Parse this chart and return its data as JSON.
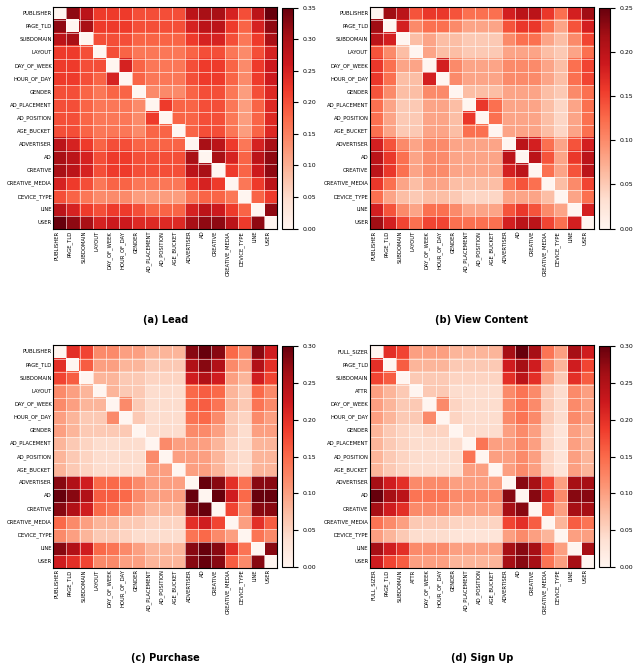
{
  "labels_lead": [
    "PUBLISHER",
    "PAGE_TLD",
    "SUBDOMAIN",
    "LAYOUT",
    "DAY_OF_WEEK",
    "HOUR_OF_DAY",
    "GENDER",
    "AD_PLACEMENT",
    "AD_POSITION",
    "AGE_BUCKET",
    "ADVERTISER",
    "AD",
    "CREATIVE",
    "CREATIVE_MEDIA",
    "DEVICE_TYPE",
    "LINE",
    "USER"
  ],
  "labels_view": [
    "PUBLISHER",
    "PAGE_TLD",
    "SUBDOMAIN",
    "LAYOUT",
    "DAY_OF_WEEK",
    "HOUR_OF_DAY",
    "GENDER",
    "AD_PLACEMENT",
    "AD_POSITION",
    "AGE_BUCKET",
    "ADVERTISER",
    "AD",
    "CREATIVE",
    "CREATIVE_MEDIA",
    "DEVICE_TYPE",
    "LINE",
    "USER"
  ],
  "labels_purchase": [
    "PUBLISHER",
    "PAGE_TLD",
    "SUBDOMAIN",
    "LAYOUT",
    "DAY_OF_WEEK",
    "HOUR_OF_DAY",
    "GENDER",
    "AD_PLACEMENT",
    "AD_POSITION",
    "AGE_BUCKET",
    "ADVERTISER",
    "AD",
    "CREATIVE",
    "CREATIVE_MEDIA",
    "DEVICE_TYPE",
    "LINE",
    "USER"
  ],
  "labels_signup": [
    "FULL_SIZER",
    "PAGE_TLD",
    "SUBDOMAIN",
    "ATTR",
    "DAY_OF_WEEK",
    "HOUR_OF_DAY",
    "GENDER",
    "AD_PLACEMENT",
    "AD_POSITION",
    "AGE_BUCKET",
    "ADVERTISER",
    "AD",
    "CREATIVE",
    "CREATIVE_MEDIA",
    "DEVICE_TYPE",
    "LINE",
    "USER"
  ],
  "title_a": "(a) Lead",
  "title_b": "(b) View Content",
  "title_c": "(c) Purchase",
  "title_d": "(d) Sign Up",
  "vmax_lead": 0.35,
  "vmax_view": 0.25,
  "vmax_purchase": 0.3,
  "vmax_signup": 0.3,
  "cbar_ticks_lead": [
    0.0,
    0.05,
    0.1,
    0.15,
    0.2,
    0.25,
    0.3,
    0.35
  ],
  "cbar_ticks_view": [
    0.0,
    0.05,
    0.1,
    0.15,
    0.2,
    0.25
  ],
  "cbar_ticks_purchase": [
    0.0,
    0.05,
    0.1,
    0.15,
    0.2,
    0.25,
    0.3
  ],
  "cbar_ticks_signup": [
    0.0,
    0.05,
    0.1,
    0.15,
    0.2,
    0.25,
    0.3
  ],
  "lead_mat": [
    [
      0.0,
      0.32,
      0.28,
      0.22,
      0.22,
      0.22,
      0.2,
      0.2,
      0.2,
      0.2,
      0.28,
      0.3,
      0.3,
      0.25,
      0.2,
      0.28,
      0.35
    ],
    [
      0.32,
      0.0,
      0.3,
      0.22,
      0.22,
      0.22,
      0.2,
      0.2,
      0.2,
      0.2,
      0.25,
      0.28,
      0.28,
      0.22,
      0.18,
      0.25,
      0.32
    ],
    [
      0.28,
      0.3,
      0.0,
      0.2,
      0.2,
      0.2,
      0.18,
      0.18,
      0.18,
      0.18,
      0.22,
      0.25,
      0.25,
      0.2,
      0.16,
      0.22,
      0.3
    ],
    [
      0.22,
      0.22,
      0.2,
      0.0,
      0.2,
      0.18,
      0.16,
      0.16,
      0.16,
      0.16,
      0.18,
      0.2,
      0.2,
      0.16,
      0.14,
      0.2,
      0.25
    ],
    [
      0.22,
      0.22,
      0.2,
      0.2,
      0.0,
      0.25,
      0.18,
      0.16,
      0.16,
      0.16,
      0.2,
      0.22,
      0.22,
      0.18,
      0.14,
      0.22,
      0.26
    ],
    [
      0.22,
      0.22,
      0.2,
      0.18,
      0.25,
      0.0,
      0.18,
      0.16,
      0.16,
      0.16,
      0.2,
      0.22,
      0.22,
      0.18,
      0.14,
      0.22,
      0.26
    ],
    [
      0.2,
      0.2,
      0.18,
      0.16,
      0.18,
      0.18,
      0.0,
      0.14,
      0.14,
      0.14,
      0.18,
      0.2,
      0.2,
      0.16,
      0.12,
      0.2,
      0.24
    ],
    [
      0.2,
      0.2,
      0.18,
      0.16,
      0.16,
      0.16,
      0.14,
      0.0,
      0.22,
      0.18,
      0.18,
      0.2,
      0.2,
      0.16,
      0.12,
      0.18,
      0.24
    ],
    [
      0.2,
      0.2,
      0.18,
      0.16,
      0.16,
      0.16,
      0.14,
      0.22,
      0.0,
      0.18,
      0.18,
      0.2,
      0.2,
      0.16,
      0.12,
      0.18,
      0.24
    ],
    [
      0.2,
      0.2,
      0.18,
      0.16,
      0.16,
      0.16,
      0.14,
      0.18,
      0.18,
      0.0,
      0.18,
      0.2,
      0.2,
      0.16,
      0.12,
      0.18,
      0.24
    ],
    [
      0.28,
      0.25,
      0.22,
      0.18,
      0.2,
      0.2,
      0.18,
      0.18,
      0.18,
      0.18,
      0.0,
      0.3,
      0.28,
      0.22,
      0.16,
      0.25,
      0.3
    ],
    [
      0.3,
      0.28,
      0.25,
      0.2,
      0.22,
      0.22,
      0.2,
      0.2,
      0.2,
      0.2,
      0.3,
      0.0,
      0.3,
      0.25,
      0.18,
      0.28,
      0.32
    ],
    [
      0.3,
      0.28,
      0.25,
      0.2,
      0.22,
      0.22,
      0.2,
      0.2,
      0.2,
      0.2,
      0.28,
      0.3,
      0.0,
      0.22,
      0.18,
      0.26,
      0.32
    ],
    [
      0.25,
      0.22,
      0.2,
      0.16,
      0.18,
      0.18,
      0.16,
      0.16,
      0.16,
      0.16,
      0.22,
      0.25,
      0.22,
      0.0,
      0.16,
      0.22,
      0.28
    ],
    [
      0.2,
      0.18,
      0.16,
      0.14,
      0.14,
      0.14,
      0.12,
      0.12,
      0.12,
      0.12,
      0.16,
      0.18,
      0.18,
      0.16,
      0.0,
      0.18,
      0.22
    ],
    [
      0.28,
      0.25,
      0.22,
      0.2,
      0.22,
      0.22,
      0.2,
      0.18,
      0.18,
      0.18,
      0.25,
      0.28,
      0.26,
      0.22,
      0.18,
      0.0,
      0.32
    ],
    [
      0.35,
      0.32,
      0.3,
      0.25,
      0.26,
      0.26,
      0.24,
      0.24,
      0.24,
      0.24,
      0.3,
      0.32,
      0.32,
      0.28,
      0.22,
      0.32,
      0.0
    ]
  ],
  "view_mat": [
    [
      0.0,
      0.22,
      0.2,
      0.14,
      0.16,
      0.16,
      0.14,
      0.12,
      0.12,
      0.12,
      0.18,
      0.2,
      0.2,
      0.16,
      0.12,
      0.18,
      0.22
    ],
    [
      0.22,
      0.0,
      0.18,
      0.1,
      0.12,
      0.12,
      0.1,
      0.08,
      0.08,
      0.08,
      0.14,
      0.16,
      0.16,
      0.12,
      0.08,
      0.14,
      0.18
    ],
    [
      0.2,
      0.18,
      0.0,
      0.06,
      0.08,
      0.06,
      0.06,
      0.05,
      0.05,
      0.05,
      0.1,
      0.12,
      0.12,
      0.08,
      0.06,
      0.1,
      0.15
    ],
    [
      0.14,
      0.1,
      0.06,
      0.0,
      0.08,
      0.06,
      0.06,
      0.05,
      0.05,
      0.05,
      0.08,
      0.08,
      0.08,
      0.06,
      0.05,
      0.08,
      0.12
    ],
    [
      0.16,
      0.12,
      0.08,
      0.08,
      0.0,
      0.18,
      0.1,
      0.08,
      0.08,
      0.08,
      0.1,
      0.1,
      0.1,
      0.08,
      0.06,
      0.12,
      0.15
    ],
    [
      0.16,
      0.12,
      0.06,
      0.06,
      0.18,
      0.0,
      0.1,
      0.08,
      0.08,
      0.08,
      0.1,
      0.1,
      0.1,
      0.08,
      0.06,
      0.12,
      0.15
    ],
    [
      0.14,
      0.1,
      0.06,
      0.06,
      0.1,
      0.1,
      0.0,
      0.06,
      0.06,
      0.06,
      0.08,
      0.08,
      0.08,
      0.06,
      0.05,
      0.1,
      0.12
    ],
    [
      0.12,
      0.08,
      0.05,
      0.05,
      0.08,
      0.08,
      0.06,
      0.0,
      0.16,
      0.12,
      0.08,
      0.08,
      0.08,
      0.06,
      0.04,
      0.08,
      0.12
    ],
    [
      0.12,
      0.08,
      0.05,
      0.05,
      0.08,
      0.08,
      0.06,
      0.16,
      0.0,
      0.12,
      0.08,
      0.08,
      0.08,
      0.06,
      0.04,
      0.08,
      0.12
    ],
    [
      0.12,
      0.08,
      0.05,
      0.05,
      0.08,
      0.08,
      0.06,
      0.12,
      0.12,
      0.0,
      0.08,
      0.08,
      0.08,
      0.06,
      0.04,
      0.08,
      0.12
    ],
    [
      0.18,
      0.14,
      0.1,
      0.08,
      0.1,
      0.1,
      0.08,
      0.08,
      0.08,
      0.08,
      0.0,
      0.2,
      0.18,
      0.12,
      0.08,
      0.14,
      0.18
    ],
    [
      0.2,
      0.16,
      0.12,
      0.08,
      0.1,
      0.1,
      0.08,
      0.08,
      0.08,
      0.08,
      0.2,
      0.0,
      0.2,
      0.14,
      0.08,
      0.16,
      0.2
    ],
    [
      0.2,
      0.16,
      0.12,
      0.08,
      0.1,
      0.1,
      0.08,
      0.08,
      0.08,
      0.08,
      0.18,
      0.2,
      0.0,
      0.12,
      0.08,
      0.14,
      0.2
    ],
    [
      0.16,
      0.12,
      0.08,
      0.06,
      0.08,
      0.08,
      0.06,
      0.06,
      0.06,
      0.06,
      0.12,
      0.14,
      0.12,
      0.0,
      0.06,
      0.1,
      0.15
    ],
    [
      0.12,
      0.08,
      0.06,
      0.05,
      0.06,
      0.06,
      0.05,
      0.04,
      0.04,
      0.04,
      0.08,
      0.08,
      0.08,
      0.06,
      0.0,
      0.08,
      0.12
    ],
    [
      0.18,
      0.14,
      0.1,
      0.08,
      0.12,
      0.12,
      0.1,
      0.08,
      0.08,
      0.08,
      0.14,
      0.16,
      0.14,
      0.1,
      0.08,
      0.0,
      0.18
    ],
    [
      0.22,
      0.18,
      0.15,
      0.12,
      0.15,
      0.15,
      0.12,
      0.12,
      0.12,
      0.12,
      0.18,
      0.2,
      0.2,
      0.15,
      0.12,
      0.18,
      0.0
    ]
  ],
  "purchase_mat": [
    [
      0.0,
      0.2,
      0.18,
      0.12,
      0.12,
      0.1,
      0.1,
      0.08,
      0.08,
      0.08,
      0.28,
      0.3,
      0.28,
      0.15,
      0.12,
      0.28,
      0.22
    ],
    [
      0.2,
      0.0,
      0.16,
      0.1,
      0.1,
      0.08,
      0.08,
      0.06,
      0.06,
      0.06,
      0.25,
      0.28,
      0.25,
      0.12,
      0.1,
      0.25,
      0.2
    ],
    [
      0.18,
      0.16,
      0.0,
      0.08,
      0.08,
      0.06,
      0.06,
      0.05,
      0.05,
      0.05,
      0.22,
      0.25,
      0.22,
      0.1,
      0.08,
      0.22,
      0.18
    ],
    [
      0.12,
      0.1,
      0.08,
      0.0,
      0.08,
      0.06,
      0.06,
      0.04,
      0.04,
      0.04,
      0.15,
      0.16,
      0.15,
      0.08,
      0.06,
      0.15,
      0.12
    ],
    [
      0.12,
      0.1,
      0.08,
      0.08,
      0.0,
      0.12,
      0.06,
      0.04,
      0.04,
      0.04,
      0.15,
      0.16,
      0.14,
      0.08,
      0.06,
      0.14,
      0.12
    ],
    [
      0.1,
      0.08,
      0.06,
      0.06,
      0.12,
      0.0,
      0.06,
      0.04,
      0.04,
      0.04,
      0.14,
      0.15,
      0.12,
      0.06,
      0.05,
      0.12,
      0.1
    ],
    [
      0.1,
      0.08,
      0.06,
      0.06,
      0.06,
      0.06,
      0.0,
      0.04,
      0.04,
      0.04,
      0.12,
      0.12,
      0.1,
      0.06,
      0.04,
      0.1,
      0.1
    ],
    [
      0.08,
      0.06,
      0.05,
      0.04,
      0.04,
      0.04,
      0.04,
      0.0,
      0.12,
      0.1,
      0.1,
      0.1,
      0.08,
      0.05,
      0.04,
      0.08,
      0.08
    ],
    [
      0.08,
      0.06,
      0.05,
      0.04,
      0.04,
      0.04,
      0.04,
      0.12,
      0.0,
      0.1,
      0.1,
      0.1,
      0.08,
      0.05,
      0.04,
      0.08,
      0.08
    ],
    [
      0.08,
      0.06,
      0.05,
      0.04,
      0.04,
      0.04,
      0.04,
      0.1,
      0.1,
      0.0,
      0.1,
      0.1,
      0.08,
      0.05,
      0.04,
      0.08,
      0.08
    ],
    [
      0.28,
      0.25,
      0.22,
      0.15,
      0.15,
      0.14,
      0.12,
      0.1,
      0.1,
      0.1,
      0.0,
      0.3,
      0.28,
      0.2,
      0.14,
      0.28,
      0.28
    ],
    [
      0.3,
      0.28,
      0.25,
      0.16,
      0.16,
      0.15,
      0.12,
      0.1,
      0.1,
      0.1,
      0.3,
      0.0,
      0.3,
      0.22,
      0.15,
      0.3,
      0.3
    ],
    [
      0.28,
      0.25,
      0.22,
      0.15,
      0.14,
      0.12,
      0.1,
      0.08,
      0.08,
      0.08,
      0.28,
      0.3,
      0.0,
      0.18,
      0.12,
      0.28,
      0.28
    ],
    [
      0.15,
      0.12,
      0.1,
      0.08,
      0.08,
      0.06,
      0.06,
      0.05,
      0.05,
      0.05,
      0.2,
      0.22,
      0.18,
      0.0,
      0.1,
      0.2,
      0.16
    ],
    [
      0.12,
      0.1,
      0.08,
      0.06,
      0.06,
      0.05,
      0.04,
      0.04,
      0.04,
      0.04,
      0.14,
      0.15,
      0.12,
      0.1,
      0.0,
      0.14,
      0.12
    ],
    [
      0.28,
      0.25,
      0.22,
      0.15,
      0.14,
      0.12,
      0.1,
      0.08,
      0.08,
      0.08,
      0.28,
      0.3,
      0.28,
      0.2,
      0.14,
      0.0,
      0.28
    ],
    [
      0.22,
      0.2,
      0.18,
      0.12,
      0.12,
      0.1,
      0.1,
      0.08,
      0.08,
      0.08,
      0.28,
      0.3,
      0.28,
      0.16,
      0.12,
      0.28,
      0.0
    ]
  ],
  "signup_mat": [
    [
      0.0,
      0.2,
      0.18,
      0.1,
      0.1,
      0.1,
      0.08,
      0.08,
      0.08,
      0.08,
      0.26,
      0.3,
      0.26,
      0.14,
      0.1,
      0.26,
      0.22
    ],
    [
      0.2,
      0.0,
      0.16,
      0.08,
      0.08,
      0.08,
      0.06,
      0.06,
      0.06,
      0.06,
      0.22,
      0.26,
      0.22,
      0.12,
      0.08,
      0.22,
      0.18
    ],
    [
      0.18,
      0.16,
      0.0,
      0.06,
      0.06,
      0.06,
      0.05,
      0.05,
      0.05,
      0.05,
      0.2,
      0.24,
      0.2,
      0.1,
      0.06,
      0.2,
      0.16
    ],
    [
      0.1,
      0.08,
      0.06,
      0.0,
      0.06,
      0.06,
      0.04,
      0.04,
      0.04,
      0.04,
      0.12,
      0.14,
      0.12,
      0.06,
      0.04,
      0.12,
      0.1
    ],
    [
      0.1,
      0.08,
      0.06,
      0.06,
      0.0,
      0.12,
      0.05,
      0.04,
      0.04,
      0.04,
      0.12,
      0.14,
      0.12,
      0.06,
      0.04,
      0.12,
      0.1
    ],
    [
      0.1,
      0.08,
      0.06,
      0.06,
      0.12,
      0.0,
      0.05,
      0.04,
      0.04,
      0.04,
      0.12,
      0.14,
      0.12,
      0.06,
      0.04,
      0.12,
      0.1
    ],
    [
      0.08,
      0.06,
      0.05,
      0.04,
      0.05,
      0.05,
      0.0,
      0.04,
      0.04,
      0.04,
      0.1,
      0.12,
      0.1,
      0.05,
      0.03,
      0.1,
      0.08
    ],
    [
      0.08,
      0.06,
      0.05,
      0.04,
      0.04,
      0.04,
      0.04,
      0.0,
      0.14,
      0.1,
      0.1,
      0.12,
      0.1,
      0.05,
      0.03,
      0.1,
      0.08
    ],
    [
      0.08,
      0.06,
      0.05,
      0.04,
      0.04,
      0.04,
      0.04,
      0.14,
      0.0,
      0.1,
      0.1,
      0.12,
      0.1,
      0.05,
      0.03,
      0.1,
      0.08
    ],
    [
      0.08,
      0.06,
      0.05,
      0.04,
      0.04,
      0.04,
      0.04,
      0.1,
      0.1,
      0.0,
      0.1,
      0.12,
      0.1,
      0.05,
      0.03,
      0.1,
      0.08
    ],
    [
      0.26,
      0.22,
      0.2,
      0.12,
      0.12,
      0.12,
      0.1,
      0.1,
      0.1,
      0.1,
      0.0,
      0.28,
      0.26,
      0.18,
      0.1,
      0.26,
      0.26
    ],
    [
      0.3,
      0.26,
      0.24,
      0.14,
      0.14,
      0.14,
      0.12,
      0.12,
      0.12,
      0.12,
      0.28,
      0.0,
      0.28,
      0.2,
      0.12,
      0.28,
      0.28
    ],
    [
      0.26,
      0.22,
      0.2,
      0.12,
      0.12,
      0.12,
      0.1,
      0.1,
      0.1,
      0.1,
      0.26,
      0.28,
      0.0,
      0.16,
      0.1,
      0.26,
      0.26
    ],
    [
      0.14,
      0.12,
      0.1,
      0.06,
      0.06,
      0.06,
      0.05,
      0.05,
      0.05,
      0.05,
      0.18,
      0.2,
      0.16,
      0.0,
      0.08,
      0.16,
      0.14
    ],
    [
      0.1,
      0.08,
      0.06,
      0.04,
      0.04,
      0.04,
      0.03,
      0.03,
      0.03,
      0.03,
      0.1,
      0.12,
      0.1,
      0.08,
      0.0,
      0.1,
      0.1
    ],
    [
      0.26,
      0.22,
      0.2,
      0.12,
      0.12,
      0.12,
      0.1,
      0.1,
      0.1,
      0.1,
      0.26,
      0.28,
      0.26,
      0.16,
      0.1,
      0.0,
      0.26
    ],
    [
      0.22,
      0.18,
      0.16,
      0.1,
      0.1,
      0.1,
      0.08,
      0.08,
      0.08,
      0.08,
      0.26,
      0.28,
      0.26,
      0.14,
      0.1,
      0.26,
      0.0
    ]
  ]
}
